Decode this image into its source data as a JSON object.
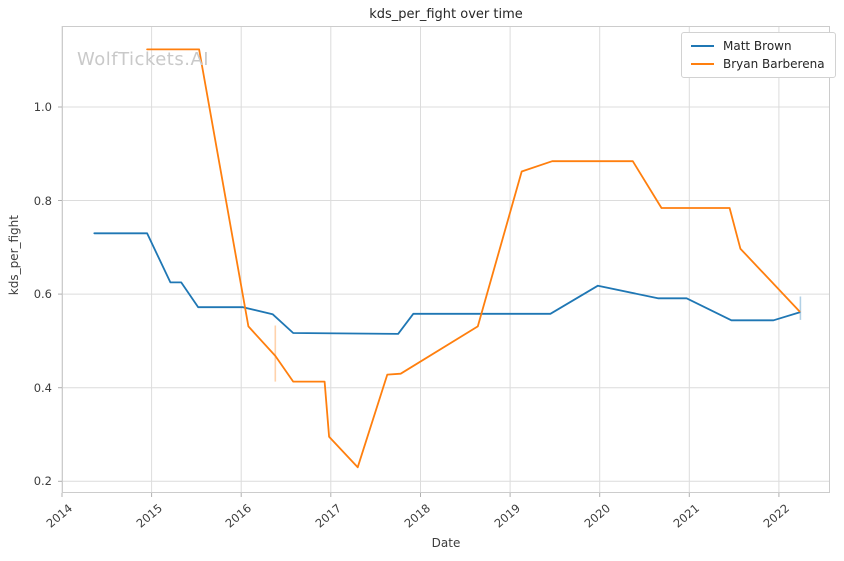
{
  "watermark": "WolfTickets.AI",
  "colors": {
    "matt_brown": "#1f77b4",
    "bryan_barberena": "#ff7f0e",
    "grid": "#dcdcdc",
    "spine": "#cccccc",
    "tick_mark": "#b0b0b0",
    "tick_label": "#3d3d3d",
    "title": "#262626",
    "watermark": "#c9c9c9"
  },
  "legend": {
    "position": "upper right",
    "items": [
      {
        "label": "Matt Brown",
        "color": "#1f77b4"
      },
      {
        "label": "Bryan Barberena",
        "color": "#ff7f0e"
      }
    ]
  },
  "chart_data": {
    "type": "line",
    "title": "kds_per_fight over time",
    "xlabel": "Date",
    "ylabel": "kds_per_fight",
    "grid": true,
    "x_ticks": [
      2014,
      2015,
      2016,
      2017,
      2018,
      2019,
      2020,
      2021,
      2022
    ],
    "y_ticks": [
      0.2,
      0.4,
      0.6,
      0.8,
      1.0
    ],
    "xlim": [
      2014.0,
      2022.57
    ],
    "ylim": [
      0.175,
      1.173
    ],
    "series": [
      {
        "name": "Matt Brown",
        "color": "#1f77b4",
        "points": [
          [
            2014.36,
            0.73
          ],
          [
            2014.95,
            0.73
          ],
          [
            2015.21,
            0.625
          ],
          [
            2015.33,
            0.625
          ],
          [
            2015.52,
            0.572
          ],
          [
            2016.02,
            0.572
          ],
          [
            2016.35,
            0.557
          ],
          [
            2016.58,
            0.517
          ],
          [
            2017.75,
            0.515
          ],
          [
            2017.92,
            0.558
          ],
          [
            2019.45,
            0.558
          ],
          [
            2019.98,
            0.618
          ],
          [
            2020.65,
            0.591
          ],
          [
            2020.97,
            0.591
          ],
          [
            2021.47,
            0.544
          ],
          [
            2021.94,
            0.544
          ],
          [
            2022.23,
            0.561
          ]
        ]
      },
      {
        "name": "Bryan Barberena",
        "color": "#ff7f0e",
        "points": [
          [
            2014.95,
            1.123
          ],
          [
            2015.53,
            1.123
          ],
          [
            2016.08,
            0.531
          ],
          [
            2016.38,
            0.468
          ],
          [
            2016.58,
            0.413
          ],
          [
            2016.93,
            0.413
          ],
          [
            2016.98,
            0.295
          ],
          [
            2017.3,
            0.23
          ],
          [
            2017.63,
            0.428
          ],
          [
            2017.78,
            0.43
          ],
          [
            2018.64,
            0.531
          ],
          [
            2019.13,
            0.862
          ],
          [
            2019.47,
            0.884
          ],
          [
            2020.37,
            0.884
          ],
          [
            2020.69,
            0.784
          ],
          [
            2021.45,
            0.784
          ],
          [
            2021.57,
            0.697
          ],
          [
            2022.23,
            0.563
          ]
        ]
      }
    ],
    "error_bars": [
      {
        "series": "Bryan Barberena",
        "x": 2016.38,
        "y_low": 0.413,
        "y_high": 0.533
      },
      {
        "series": "Matt Brown",
        "x": 2022.24,
        "y_low": 0.545,
        "y_high": 0.595
      }
    ]
  }
}
